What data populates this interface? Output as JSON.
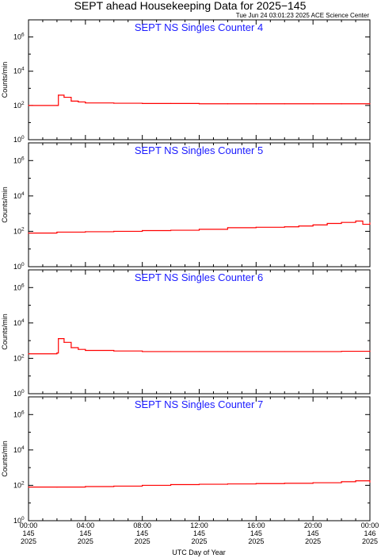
{
  "title": "SEPT ahead Housekeeping Data for 2025−145",
  "timestamp": "Tue Jun 24 03:01:23 2025 ACE Science Center",
  "colors": {
    "series": "#ff0000",
    "panel_title": "#1a1aff",
    "axes": "#000000"
  },
  "chart_data": [
    {
      "type": "line",
      "title": "SEPT NS Singles Counter 4",
      "ylabel": "Counts/min",
      "yscale": "log",
      "ylim": [
        1,
        10000000
      ],
      "xlim": [
        0,
        24
      ],
      "x": [
        0,
        2,
        2.1,
        2.5,
        3,
        3.5,
        4,
        6,
        8,
        10,
        12,
        14,
        16,
        18,
        20,
        22,
        24
      ],
      "y": [
        100,
        100,
        400,
        300,
        180,
        160,
        140,
        135,
        130,
        130,
        125,
        125,
        125,
        125,
        125,
        125,
        125
      ]
    },
    {
      "type": "line",
      "title": "SEPT NS Singles Counter 5",
      "ylabel": "Counts/min",
      "yscale": "log",
      "ylim": [
        1,
        10000000
      ],
      "xlim": [
        0,
        24
      ],
      "x": [
        0,
        2,
        4,
        6,
        8,
        10,
        12,
        14,
        16,
        18,
        19,
        20,
        21,
        22,
        23,
        23.5,
        24
      ],
      "y": [
        80,
        90,
        95,
        100,
        110,
        115,
        130,
        160,
        170,
        180,
        200,
        230,
        280,
        320,
        380,
        250,
        300
      ]
    },
    {
      "type": "line",
      "title": "SEPT NS Singles Counter 6",
      "ylabel": "Counts/min",
      "yscale": "log",
      "ylim": [
        1,
        10000000
      ],
      "xlim": [
        0,
        24
      ],
      "x": [
        0,
        2,
        2.1,
        2.5,
        3,
        3.5,
        4,
        6,
        8,
        10,
        12,
        14,
        16,
        18,
        20,
        22,
        24
      ],
      "y": [
        180,
        200,
        1300,
        800,
        400,
        320,
        280,
        260,
        240,
        240,
        240,
        240,
        240,
        240,
        240,
        250,
        260
      ]
    },
    {
      "type": "line",
      "title": "SEPT NS Singles Counter 7",
      "ylabel": "Counts/min",
      "yscale": "log",
      "ylim": [
        1,
        10000000
      ],
      "xlim": [
        0,
        24
      ],
      "x": [
        0,
        2,
        4,
        6,
        8,
        10,
        12,
        14,
        16,
        18,
        20,
        22,
        23,
        24
      ],
      "y": [
        80,
        80,
        85,
        90,
        100,
        110,
        115,
        120,
        125,
        130,
        140,
        160,
        180,
        150
      ]
    }
  ],
  "yticks": [
    {
      "base": "10",
      "exp": "0",
      "value": 1
    },
    {
      "base": "10",
      "exp": "2",
      "value": 100
    },
    {
      "base": "10",
      "exp": "4",
      "value": 10000
    },
    {
      "base": "10",
      "exp": "6",
      "value": 1000000
    }
  ],
  "xticks": [
    {
      "value": 0,
      "time": "00:00",
      "day": "145",
      "year": "2025"
    },
    {
      "value": 4,
      "time": "04:00",
      "day": "145",
      "year": "2025"
    },
    {
      "value": 8,
      "time": "08:00",
      "day": "145",
      "year": "2025"
    },
    {
      "value": 12,
      "time": "12:00",
      "day": "145",
      "year": "2025"
    },
    {
      "value": 16,
      "time": "16:00",
      "day": "145",
      "year": "2025"
    },
    {
      "value": 20,
      "time": "20:00",
      "day": "145",
      "year": "2025"
    },
    {
      "value": 24,
      "time": "00:00",
      "day": "146",
      "year": "2025"
    }
  ],
  "xlabel": "UTC Day of Year"
}
